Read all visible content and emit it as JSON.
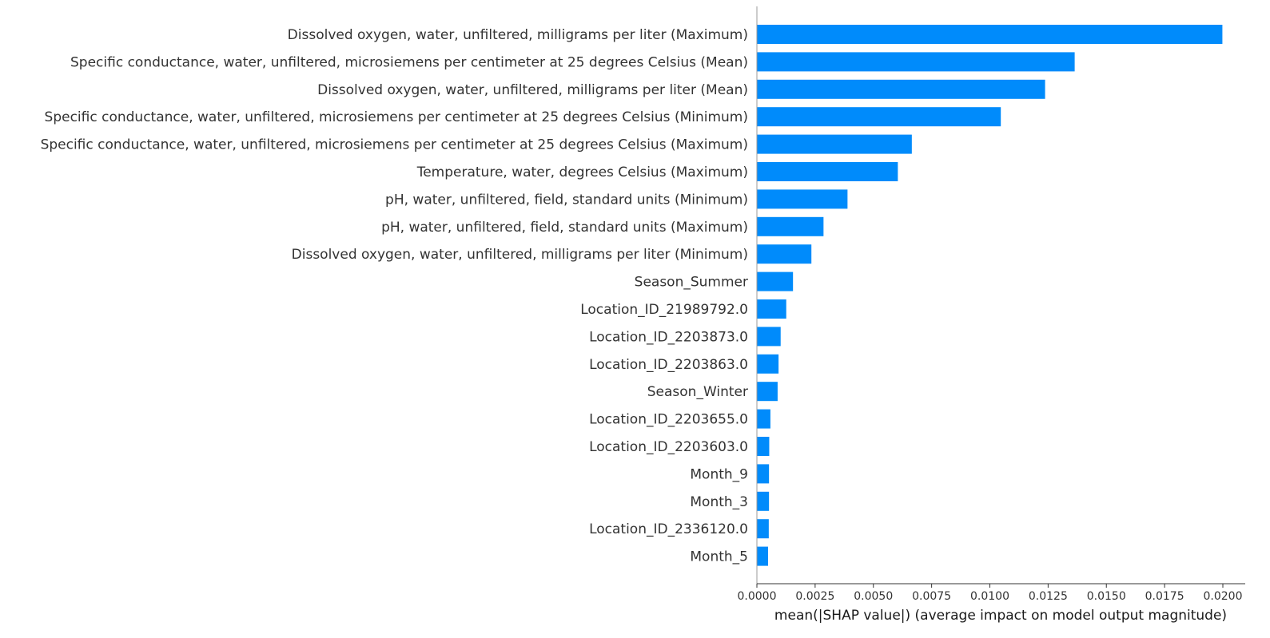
{
  "chart_data": {
    "type": "bar",
    "orientation": "horizontal",
    "xlabel": "mean(|SHAP value|) (average impact on model output magnitude)",
    "ylabel": "",
    "title": "",
    "xlim": [
      0,
      0.021
    ],
    "x_ticks": [
      "0.0000",
      "0.0025",
      "0.0050",
      "0.0075",
      "0.0100",
      "0.0125",
      "0.0150",
      "0.0175",
      "0.0200"
    ],
    "x_tick_values": [
      0,
      0.0025,
      0.005,
      0.0075,
      0.01,
      0.0125,
      0.015,
      0.0175,
      0.02
    ],
    "bar_color": "#008bfb",
    "grid": false,
    "categories": [
      "Dissolved oxygen, water, unfiltered, milligrams per liter (Maximum)",
      "Specific conductance, water, unfiltered, microsiemens per centimeter at 25 degrees Celsius (Mean)",
      "Dissolved oxygen, water, unfiltered, milligrams per liter (Mean)",
      "Specific conductance, water, unfiltered, microsiemens per centimeter at 25 degrees Celsius (Minimum)",
      "Specific conductance, water, unfiltered, microsiemens per centimeter at 25 degrees Celsius (Maximum)",
      "Temperature, water, degrees Celsius (Maximum)",
      "pH, water, unfiltered, field, standard units (Minimum)",
      "pH, water, unfiltered, field, standard units (Maximum)",
      "Dissolved oxygen, water, unfiltered, milligrams per liter (Minimum)",
      "Season_Summer",
      "Location_ID_21989792.0",
      "Location_ID_2203873.0",
      "Location_ID_2203863.0",
      "Season_Winter",
      "Location_ID_2203655.0",
      "Location_ID_2203603.0",
      "Month_9",
      "Month_3",
      "Location_ID_2336120.0",
      "Month_5"
    ],
    "values": [
      0.01998,
      0.01364,
      0.01237,
      0.01047,
      0.00665,
      0.00605,
      0.00389,
      0.00286,
      0.00234,
      0.00155,
      0.00126,
      0.00102,
      0.00093,
      0.00089,
      0.00058,
      0.00053,
      0.00052,
      0.00052,
      0.00051,
      0.00048
    ]
  }
}
